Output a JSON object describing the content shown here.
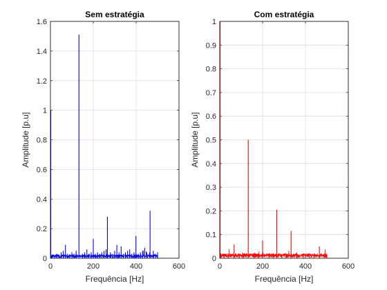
{
  "chart_data": [
    {
      "type": "line",
      "title": "Sem estratégia",
      "xlabel": "Frequência [Hz]",
      "ylabel": "Amplitude [p.u]",
      "xlim": [
        0,
        600
      ],
      "ylim": [
        0,
        1.6
      ],
      "xticks": [
        "0",
        "200",
        "400",
        "600"
      ],
      "yticks": [
        "0",
        "0.2",
        "0.4",
        "0.6",
        "0.8",
        "1",
        "1.2",
        "1.4",
        "1.6"
      ],
      "grid": true,
      "color": "#0000ff",
      "series": [
        {
          "x": [
            0,
            5,
            10,
            20,
            30,
            40,
            50,
            60,
            70,
            80,
            90,
            100,
            110,
            120,
            133,
            150,
            160,
            170,
            180,
            190,
            200,
            210,
            220,
            230,
            240,
            250,
            260,
            266,
            280,
            290,
            300,
            310,
            320,
            330,
            340,
            350,
            360,
            370,
            380,
            390,
            399,
            410,
            420,
            430,
            440,
            450,
            465,
            480,
            490,
            500
          ],
          "y": [
            1.0,
            0.02,
            0.015,
            0.02,
            0.03,
            0.025,
            0.04,
            0.05,
            0.09,
            0.03,
            0.02,
            0.04,
            0.03,
            0.05,
            1.51,
            0.03,
            0.04,
            0.06,
            0.03,
            0.04,
            0.13,
            0.03,
            0.04,
            0.03,
            0.04,
            0.05,
            0.06,
            0.28,
            0.04,
            0.03,
            0.05,
            0.09,
            0.04,
            0.08,
            0.03,
            0.04,
            0.05,
            0.06,
            0.03,
            0.04,
            0.15,
            0.03,
            0.04,
            0.05,
            0.07,
            0.04,
            0.32,
            0.05,
            0.03,
            0.04
          ]
        }
      ],
      "noise_level": 0.015
    },
    {
      "type": "line",
      "title": "Com estratégia",
      "xlabel": "Frequência [Hz]",
      "ylabel": "Amplitude [p.u]",
      "xlim": [
        0,
        600
      ],
      "ylim": [
        0,
        1
      ],
      "xticks": [
        "0",
        "200",
        "400",
        "600"
      ],
      "yticks": [
        "0",
        "0.1",
        "0.2",
        "0.3",
        "0.4",
        "0.5",
        "0.6",
        "0.7",
        "0.8",
        "0.9",
        "1"
      ],
      "grid": true,
      "color": "#ff0000",
      "series": [
        {
          "x": [
            0,
            5,
            20,
            40,
            67,
            90,
            110,
            133,
            160,
            180,
            200,
            230,
            250,
            266,
            290,
            310,
            333,
            360,
            390,
            420,
            440,
            465,
            490,
            500
          ],
          "y": [
            1.0,
            0.02,
            0.015,
            0.015,
            0.058,
            0.02,
            0.02,
            0.5,
            0.02,
            0.015,
            0.075,
            0.02,
            0.02,
            0.205,
            0.015,
            0.02,
            0.115,
            0.015,
            0.02,
            0.015,
            0.02,
            0.05,
            0.02,
            0.015
          ]
        }
      ],
      "noise_level": 0.012
    }
  ]
}
